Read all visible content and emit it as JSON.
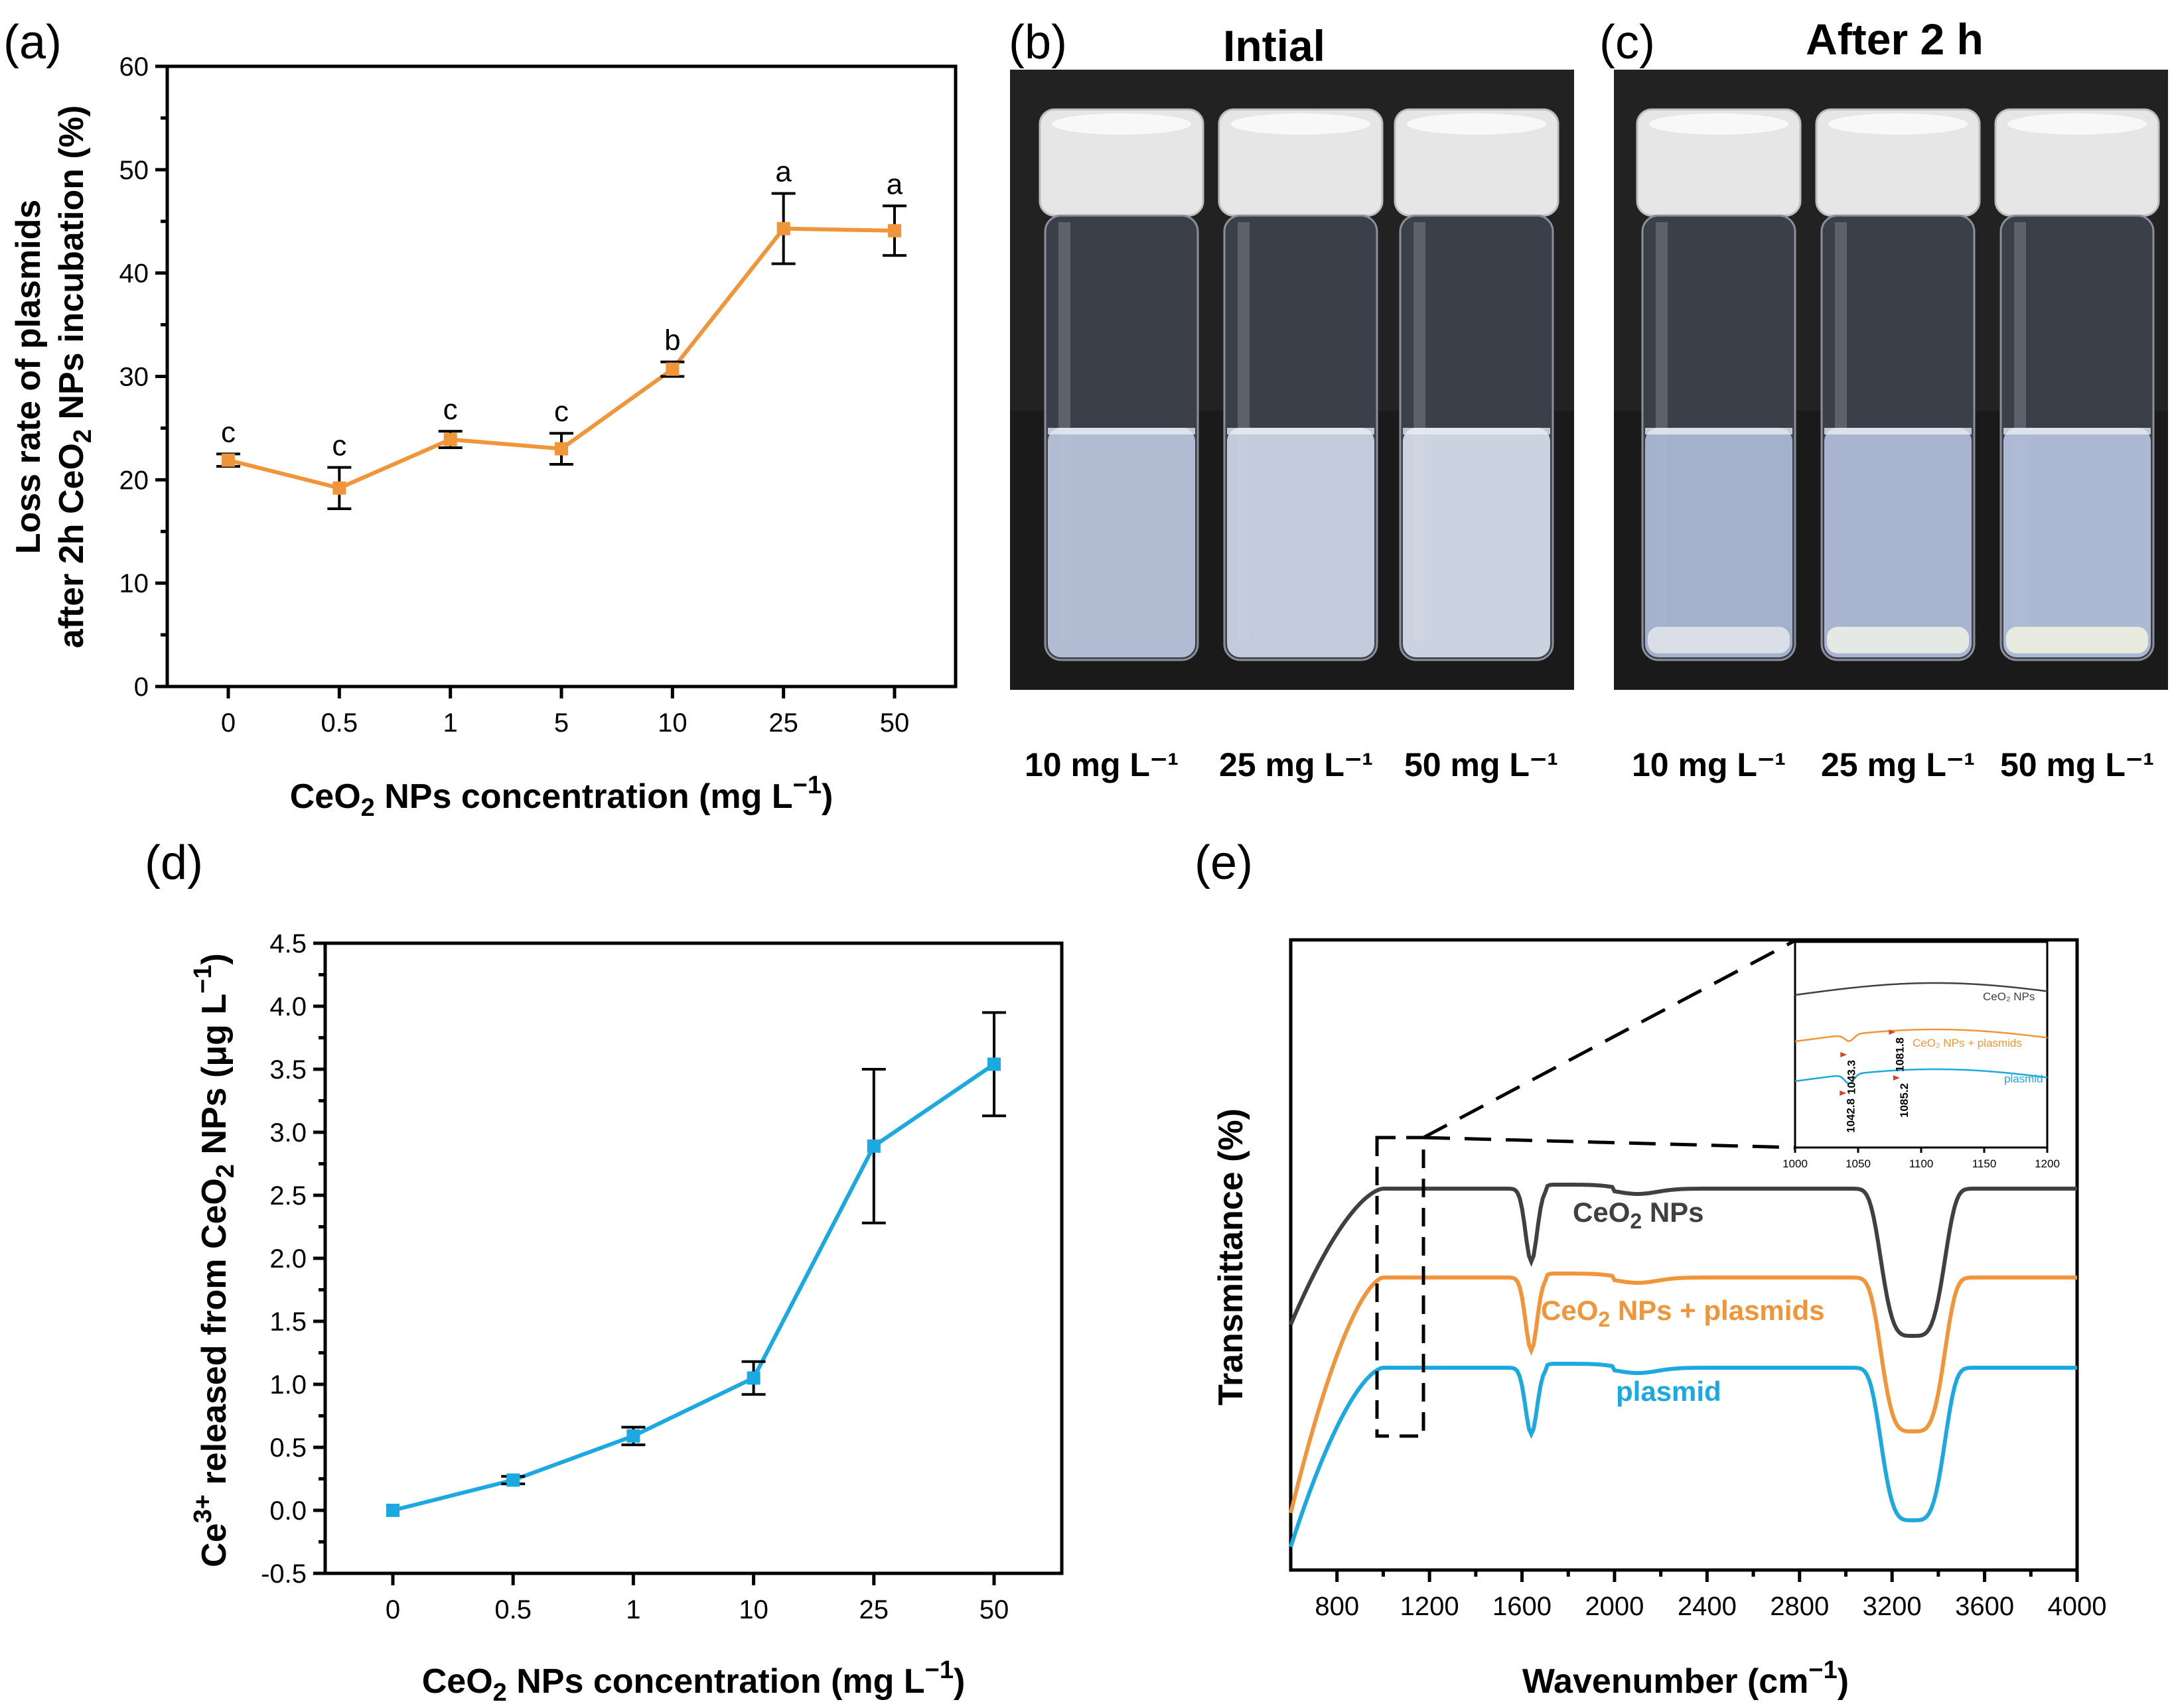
{
  "panel_labels": {
    "a": "(a)",
    "b": "(b)",
    "c": "(c)",
    "d": "(d)",
    "e": "(e)"
  },
  "colors": {
    "orange": "#F0953A",
    "blue": "#1CA8E0",
    "gray": "#404040"
  },
  "photos": {
    "b_title": "Intial",
    "c_title": "After 2 h",
    "b_labels": [
      "10 mg L⁻¹",
      "25 mg L⁻¹",
      "50 mg L⁻¹"
    ],
    "c_labels": [
      "10 mg L⁻¹",
      "25 mg L⁻¹",
      "50 mg L⁻¹"
    ]
  },
  "chart_data": [
    {
      "id": "a",
      "type": "line",
      "categories": [
        "0",
        "0.5",
        "1",
        "5",
        "10",
        "25",
        "50"
      ],
      "values": [
        21.9,
        19.2,
        23.9,
        23.0,
        30.7,
        44.3,
        44.1
      ],
      "errors": [
        0.6,
        2.0,
        0.8,
        1.5,
        0.7,
        3.4,
        2.4
      ],
      "letters": [
        "c",
        "c",
        "c",
        "c",
        "b",
        "a",
        "a"
      ],
      "ylim": [
        0,
        60
      ],
      "yticks": [
        "0",
        "10",
        "20",
        "30",
        "40",
        "50",
        "60"
      ],
      "ylabel_line1": "Loss rate of plasmids",
      "ylabel_line2_pre": "after 2h CeO",
      "ylabel_line2_sub": "2",
      "ylabel_line2_post": " NPs incubation (%)",
      "xlabel_pre": "CeO",
      "xlabel_sub": "2",
      "xlabel_post": " NPs concentration (mg L",
      "xlabel_sup": "−1",
      "xlabel_end": ")"
    },
    {
      "id": "d",
      "type": "line",
      "categories": [
        "0",
        "0.5",
        "1",
        "10",
        "25",
        "50"
      ],
      "values": [
        0.0,
        0.24,
        0.59,
        1.05,
        2.89,
        3.54
      ],
      "errors": [
        0.0,
        0.03,
        0.07,
        0.13,
        0.61,
        0.41
      ],
      "ylim": [
        -0.5,
        4.5
      ],
      "yticks": [
        "-0.5",
        "0.0",
        "0.5",
        "1.0",
        "1.5",
        "2.0",
        "2.5",
        "3.0",
        "3.5",
        "4.0",
        "4.5"
      ],
      "ylabel_pre": "Ce",
      "ylabel_sup": "3+",
      "ylabel_mid": " released from CeO",
      "ylabel_sub": "2",
      "ylabel_mid2": " NPs (μg L",
      "ylabel_sup2": "−1",
      "ylabel_end": ")",
      "xlabel_pre": "CeO",
      "xlabel_sub": "2",
      "xlabel_post": " NPs concentration (mg L",
      "xlabel_sup": "−1",
      "xlabel_end": ")"
    },
    {
      "id": "e",
      "type": "line",
      "xlim": [
        600,
        4000
      ],
      "xticks": [
        "800",
        "1200",
        "1600",
        "2000",
        "2400",
        "2800",
        "3200",
        "3600",
        "4000"
      ],
      "xlabel_pre": "Wavenumber (cm",
      "xlabel_sup": "−1",
      "xlabel_end": ")",
      "ylabel": "Transmittance (%)",
      "series": [
        {
          "name": "CeO2 NPs",
          "label_pre": "CeO",
          "label_sub": "2",
          "label_post": " NPs"
        },
        {
          "name": "CeO2 NPs + plasmids",
          "label_pre": "CeO",
          "label_sub": "2",
          "label_post": " NPs + plasmids"
        },
        {
          "name": "plasmid",
          "label_pre": "plasmid",
          "label_sub": "",
          "label_post": ""
        }
      ],
      "inset": {
        "xlim": [
          1000,
          1200
        ],
        "xticks": [
          "1000",
          "1050",
          "1100",
          "1150",
          "1200"
        ],
        "legend": [
          "CeO₂ NPs",
          "CeO₂ NPs + plasmids",
          "plasmid"
        ],
        "peaks": [
          "1043.3",
          "1081.8",
          "1042.8",
          "1085.2"
        ]
      }
    }
  ]
}
